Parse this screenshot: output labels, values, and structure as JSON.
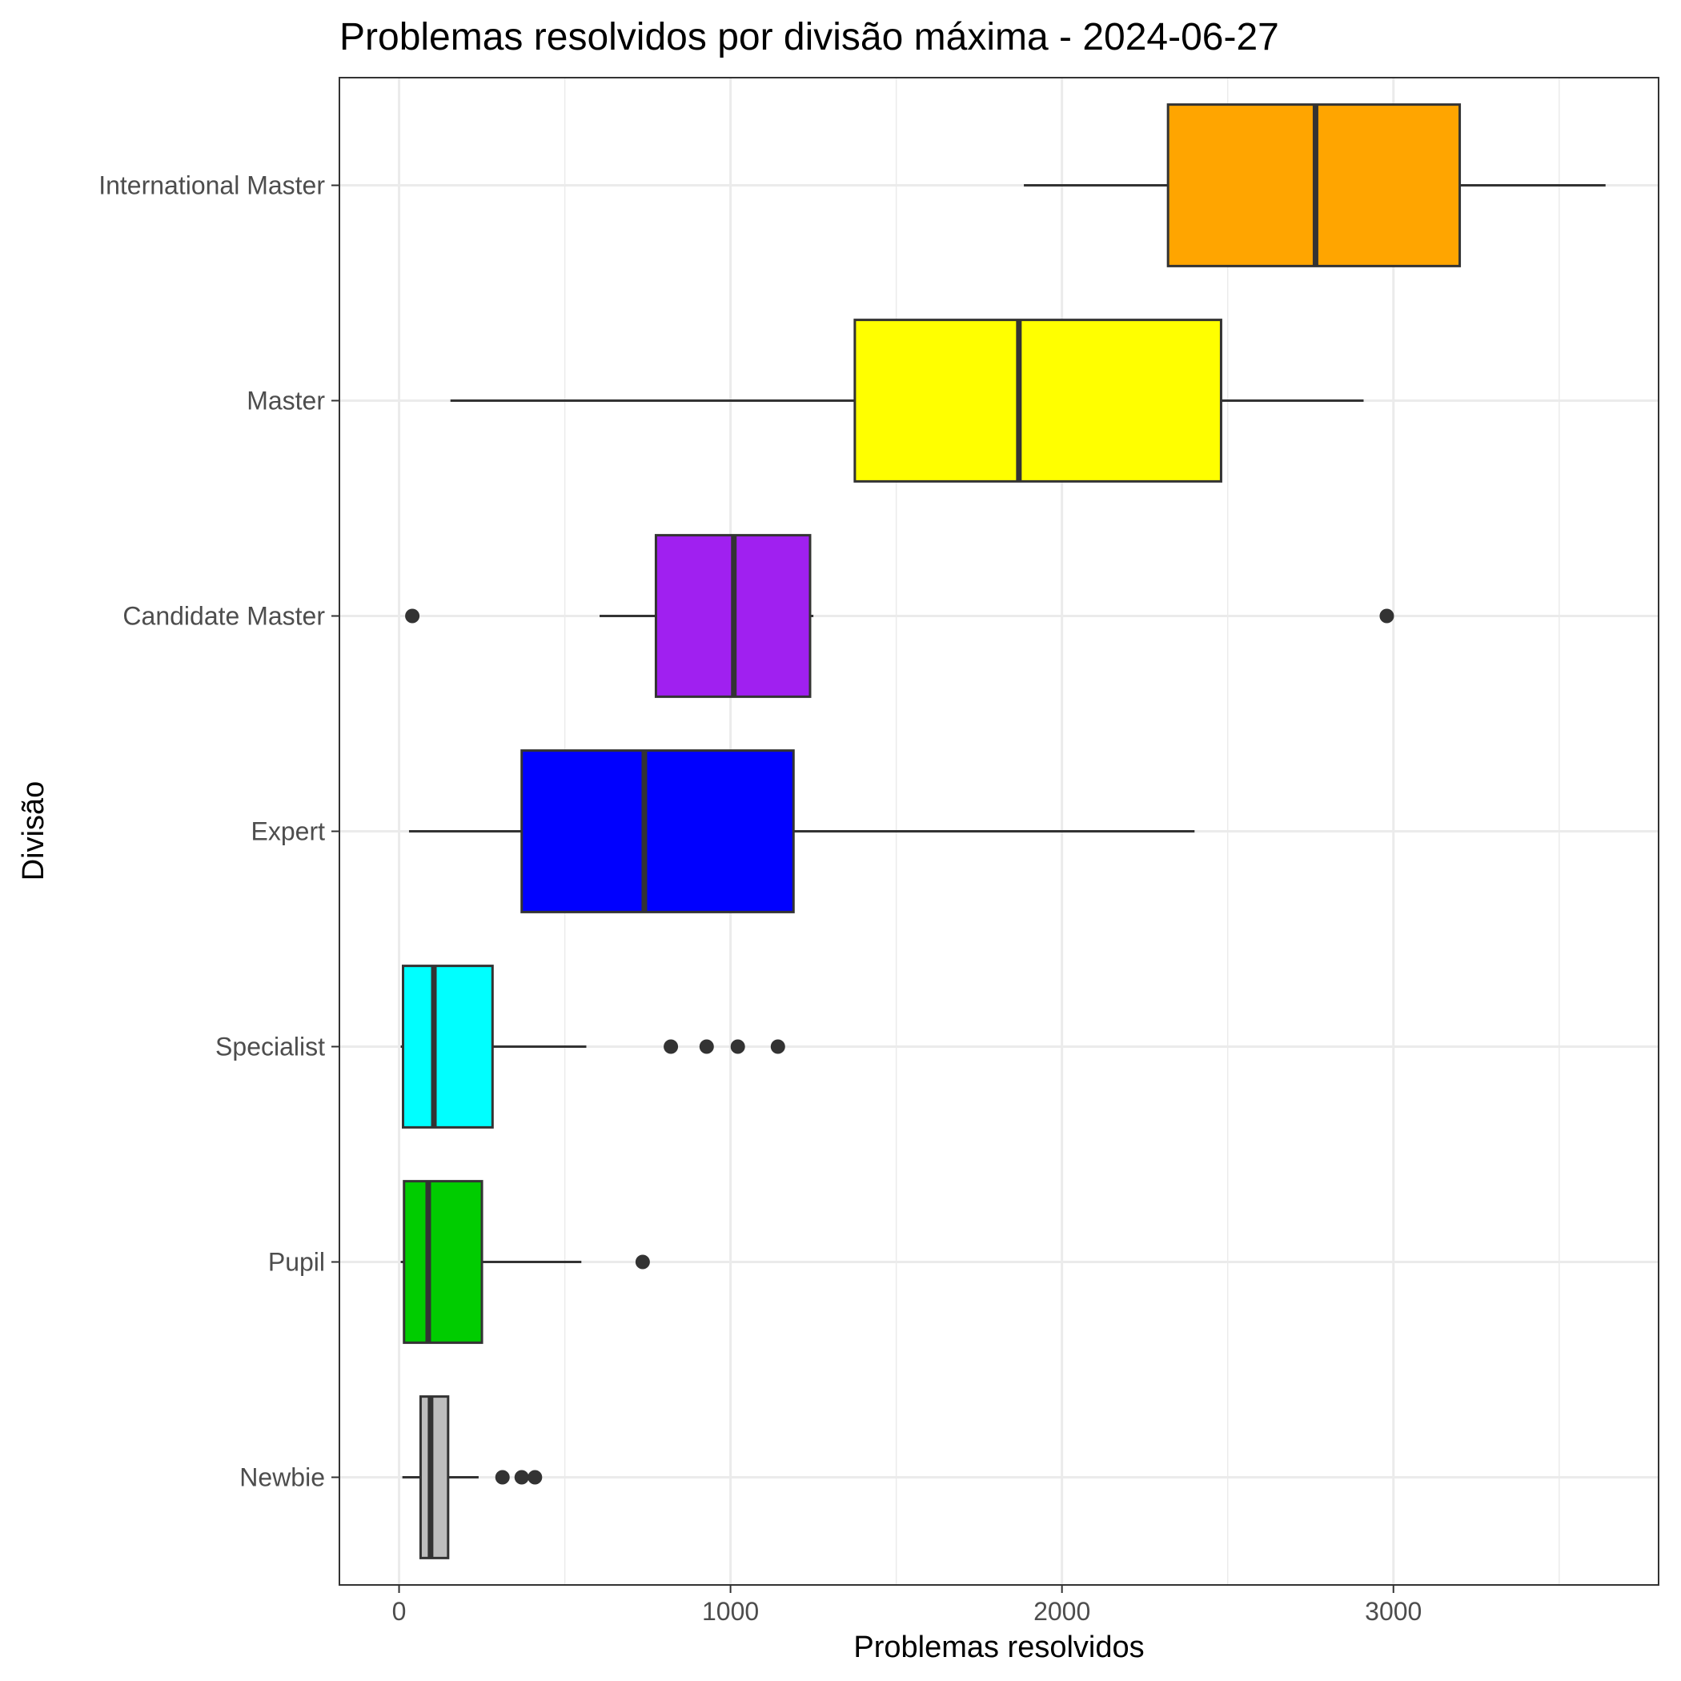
{
  "chart_data": {
    "type": "boxplot",
    "orientation": "horizontal",
    "title": "Problemas resolvidos por divisão máxima - 2024-06-27",
    "xlabel": "Problemas resolvidos",
    "ylabel": "Divisão",
    "xlim": [
      -180,
      3800
    ],
    "x_ticks": [
      0,
      1000,
      2000,
      3000
    ],
    "x_tick_labels": [
      "0",
      "1000",
      "2000",
      "3000"
    ],
    "grid": true,
    "legend": "none",
    "categories": [
      "Newbie",
      "Pupil",
      "Specialist",
      "Expert",
      "Candidate Master",
      "Master",
      "International Master"
    ],
    "boxes": [
      {
        "category": "Newbie",
        "color": "#bebebe",
        "whisker_low": 10,
        "q1": 65,
        "median": 95,
        "q3": 148,
        "whisker_high": 240,
        "outliers": [
          312,
          370,
          410
        ]
      },
      {
        "category": "Pupil",
        "color": "#00cc00",
        "whisker_low": 5,
        "q1": 15,
        "median": 88,
        "q3": 250,
        "whisker_high": 550,
        "outliers": [
          735
        ]
      },
      {
        "category": "Specialist",
        "color": "#00ffff",
        "whisker_low": 5,
        "q1": 12,
        "median": 105,
        "q3": 282,
        "whisker_high": 565,
        "outliers": [
          820,
          928,
          1022,
          1143
        ]
      },
      {
        "category": "Expert",
        "color": "#0000ff",
        "whisker_low": 30,
        "q1": 370,
        "median": 740,
        "q3": 1190,
        "whisker_high": 2400,
        "outliers": []
      },
      {
        "category": "Candidate Master",
        "color": "#a020f0",
        "whisker_low": 605,
        "q1": 775,
        "median": 1010,
        "q3": 1240,
        "whisker_high": 1250,
        "outliers": [
          40,
          2980
        ]
      },
      {
        "category": "Master",
        "color": "#ffff00",
        "whisker_low": 155,
        "q1": 1375,
        "median": 1870,
        "q3": 2480,
        "whisker_high": 2910,
        "outliers": []
      },
      {
        "category": "International Master",
        "color": "#ffa500",
        "whisker_low": 1885,
        "q1": 2320,
        "median": 2765,
        "q3": 3200,
        "whisker_high": 3640,
        "outliers": []
      }
    ]
  }
}
